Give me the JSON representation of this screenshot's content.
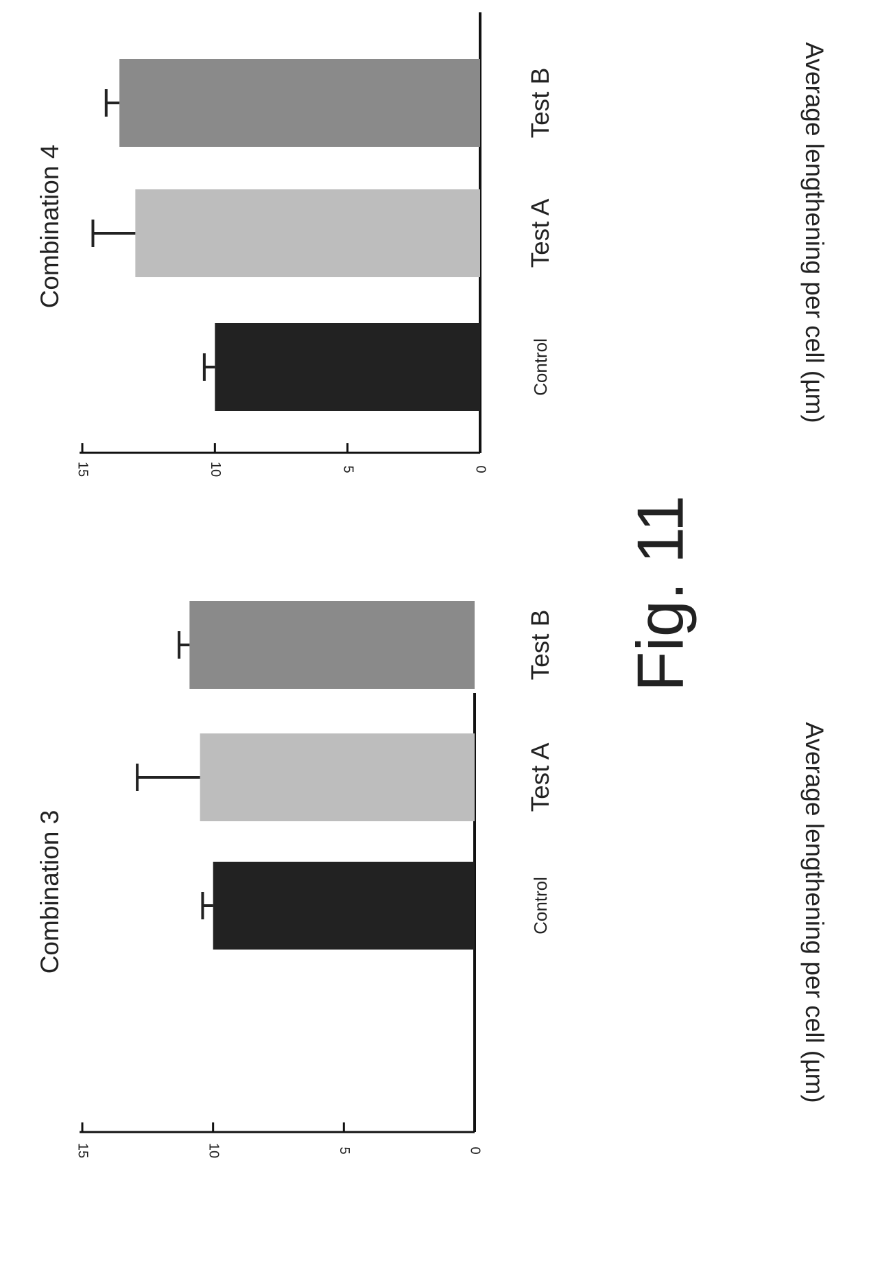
{
  "figure_label": "Fig. 11",
  "colors": {
    "control": "#222222",
    "test_a": "#bdbdbd",
    "test_b": "#8a8a8a",
    "axis": "#111111"
  },
  "chart_data": [
    {
      "type": "bar",
      "title": "Combination 3",
      "ylabel": "Average lengthening per cell (µm)",
      "xlabel": "",
      "categories": [
        "Control",
        "Test A",
        "Test B"
      ],
      "values": [
        10.0,
        10.5,
        10.9
      ],
      "errors": [
        0.4,
        2.4,
        0.4
      ],
      "ylim": [
        0,
        15
      ],
      "yticks": [
        "0",
        "5",
        "10",
        "15"
      ],
      "grid": false,
      "legend": "none"
    },
    {
      "type": "bar",
      "title": "Combination 4",
      "ylabel": "Average lengthening per cell (µm)",
      "xlabel": "",
      "categories": [
        "Control",
        "Test A",
        "Test B"
      ],
      "values": [
        10.0,
        13.0,
        13.6
      ],
      "errors": [
        0.4,
        1.6,
        0.5
      ],
      "ylim": [
        0,
        15
      ],
      "yticks": [
        "0",
        "5",
        "10",
        "15"
      ],
      "grid": false,
      "legend": "none"
    }
  ]
}
